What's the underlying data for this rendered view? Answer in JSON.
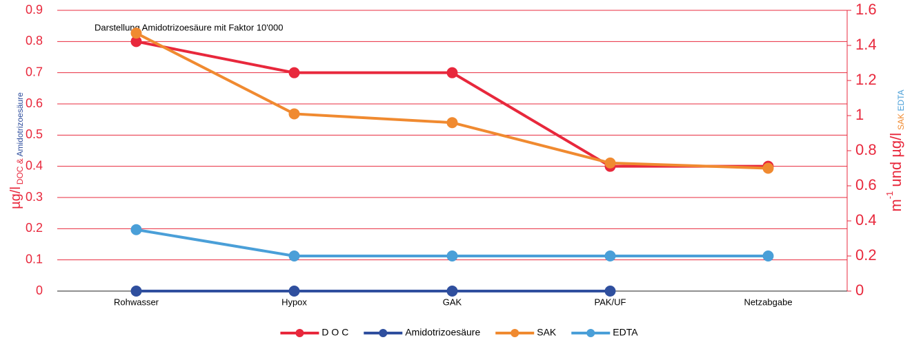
{
  "chart_data": {
    "type": "line",
    "annotation": "Darstellung Amidotrizoesäure mit Faktor 10'000",
    "y_label": [
      "µg/l",
      "DOC & ",
      "Amidotrizoesäure"
    ],
    "y2_label": [
      "m",
      "-1",
      " und µg/l",
      "SAK",
      " ",
      "EDTA"
    ],
    "categories": [
      "Rohwasser",
      "Hypox",
      "GAK",
      "PAK/UF",
      "Netzabgabe"
    ],
    "series": [
      {
        "name": "D O C",
        "color": "#e8283c",
        "values": [
          0.8,
          0.7,
          0.7,
          0.4,
          0.4
        ]
      },
      {
        "name": "Amidotrizoesäure",
        "color": "#2f4f9e",
        "values": [
          0,
          0,
          0,
          0,
          null
        ]
      },
      {
        "name": "SAK",
        "color": "#f08a30",
        "axis": "y2",
        "values": [
          1.47,
          1.01,
          0.96,
          0.73,
          0.7
        ]
      },
      {
        "name": "EDTA",
        "color": "#4a9fd8",
        "axis": "y2",
        "values": [
          0.35,
          0.2,
          0.2,
          0.2,
          0.2
        ]
      }
    ],
    "ylim": [
      0,
      0.9
    ],
    "yticks": [
      0,
      0.1,
      0.2,
      0.3,
      0.4,
      0.5,
      0.6,
      0.7,
      0.8,
      0.9
    ],
    "y2lim": [
      0,
      1.6
    ],
    "y2ticks": [
      0,
      0.2,
      0.4,
      0.6,
      0.8,
      1,
      1.2,
      1.4,
      1.6
    ],
    "grid": true,
    "legend": "bottom"
  }
}
